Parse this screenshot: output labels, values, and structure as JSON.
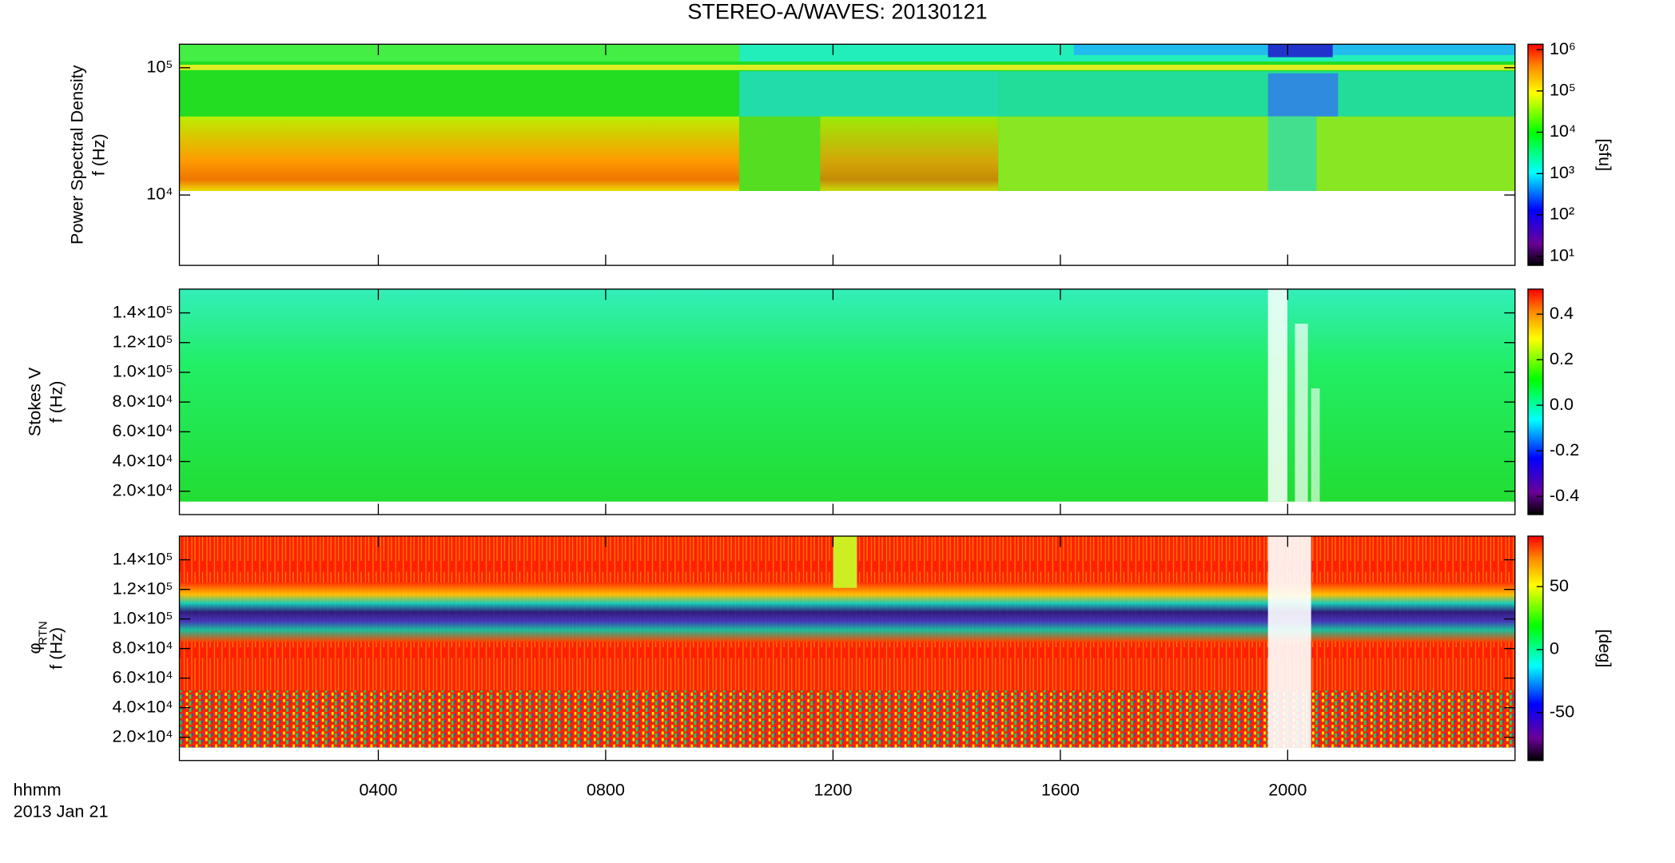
{
  "chart_data": [
    {
      "type": "heatmap",
      "title": "STEREO-A/WAVES: 20130121",
      "ylabel": [
        "Power Spectral Density",
        "f (Hz)"
      ],
      "ylog": true,
      "ylim": [
        2800,
        153000
      ],
      "yticks": [
        {
          "value": 10000,
          "label": "10⁴"
        },
        {
          "value": 100000,
          "label": "10⁵"
        }
      ],
      "clog": true,
      "clim": [
        6,
        1350000
      ],
      "cticks": [
        {
          "value": 10,
          "label": "10¹"
        },
        {
          "value": 100,
          "label": "10²"
        },
        {
          "value": 1000,
          "label": "10³"
        },
        {
          "value": 10000,
          "label": "10⁴"
        },
        {
          "value": 100000,
          "label": "10⁵"
        },
        {
          "value": 1000000,
          "label": "10⁶"
        }
      ],
      "clabel": "[sfu]"
    },
    {
      "type": "heatmap",
      "ylabel": [
        "Stokes V",
        "f (Hz)"
      ],
      "ylog": false,
      "ylim": [
        4300,
        156000
      ],
      "yticks": [
        {
          "value": 20000,
          "label": "2.0×10⁴"
        },
        {
          "value": 40000,
          "label": "4.0×10⁴"
        },
        {
          "value": 60000,
          "label": "6.0×10⁴"
        },
        {
          "value": 80000,
          "label": "8.0×10⁴"
        },
        {
          "value": 100000,
          "label": "1.0×10⁵"
        },
        {
          "value": 120000,
          "label": "1.2×10⁵"
        },
        {
          "value": 140000,
          "label": "1.4×10⁵"
        }
      ],
      "clog": false,
      "clim": [
        -0.48,
        0.51
      ],
      "cticks": [
        -0.4,
        -0.2,
        {
          "value": 0,
          "label": "0.0"
        },
        0.2,
        0.4
      ]
    },
    {
      "type": "heatmap",
      "ylabel": [
        "φ",
        "f (Hz)"
      ],
      "ylabel_subscript": "RTN",
      "ylog": false,
      "ylim": [
        4300,
        156000
      ],
      "yticks": [
        {
          "value": 20000,
          "label": "2.0×10⁴"
        },
        {
          "value": 40000,
          "label": "4.0×10⁴"
        },
        {
          "value": 60000,
          "label": "6.0×10⁴"
        },
        {
          "value": 80000,
          "label": "8.0×10⁴"
        },
        {
          "value": 100000,
          "label": "1.0×10⁵"
        },
        {
          "value": 120000,
          "label": "1.2×10⁵"
        },
        {
          "value": 140000,
          "label": "1.4×10⁵"
        }
      ],
      "clog": false,
      "clim": [
        -88,
        90
      ],
      "cticks": [
        -50,
        0,
        50
      ],
      "clabel": "[deg]",
      "xlim": [
        0.5,
        24
      ],
      "xticks": [
        {
          "value": 4,
          "label": "0400"
        },
        {
          "value": 8,
          "label": "0800"
        },
        {
          "value": 12,
          "label": "1200"
        },
        {
          "value": 16,
          "label": "1600"
        },
        {
          "value": 20,
          "label": "2000"
        }
      ],
      "xlabel": "hhmm",
      "date": "2013 Jan 21"
    }
  ]
}
